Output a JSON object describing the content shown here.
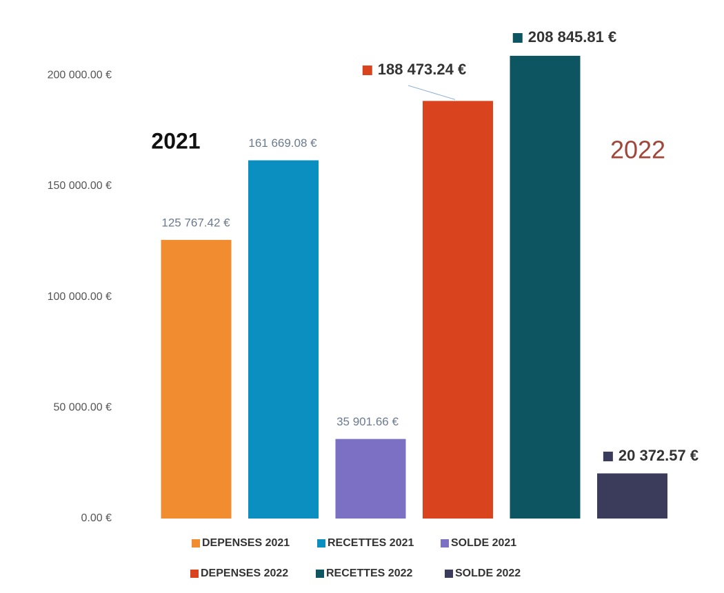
{
  "chart_data": {
    "type": "bar",
    "annotations": [
      "2021",
      "2022"
    ],
    "series": [
      {
        "name": "DEPENSES 2021",
        "color": "#f28c30",
        "values": [
          125767.42
        ],
        "value_labels": [
          "125 767.42 €"
        ]
      },
      {
        "name": "RECETTES 2021",
        "color": "#0a8fc0",
        "values": [
          161669.08
        ],
        "value_labels": [
          "161 669.08 €"
        ]
      },
      {
        "name": "SOLDE 2021",
        "color": "#7b70c4",
        "values": [
          35901.66
        ],
        "value_labels": [
          "35 901.66 €"
        ]
      },
      {
        "name": "DEPENSES 2022",
        "color": "#d9441f",
        "values": [
          188473.24
        ],
        "value_labels": [
          "188 473.24 €"
        ]
      },
      {
        "name": "RECETTES 2022",
        "color": "#0d5560",
        "values": [
          208845.81
        ],
        "value_labels": [
          "208 845.81 €"
        ]
      },
      {
        "name": "SOLDE 2022",
        "color": "#3b3b5c",
        "values": [
          20372.57
        ],
        "value_labels": [
          "20 372.57 €"
        ]
      }
    ],
    "ylim": [
      0,
      225000
    ],
    "yticks": [
      {
        "value": 0,
        "label": "0.00 €"
      },
      {
        "value": 50000,
        "label": "50 000.00 €"
      },
      {
        "value": 100000,
        "label": "100 000.00 €"
      },
      {
        "value": 150000,
        "label": "150 000.00 €"
      },
      {
        "value": 200000,
        "label": "200 000.00 €"
      }
    ],
    "grid": false
  }
}
